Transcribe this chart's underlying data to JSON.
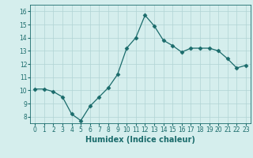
{
  "x": [
    0,
    1,
    2,
    3,
    4,
    5,
    6,
    7,
    8,
    9,
    10,
    11,
    12,
    13,
    14,
    15,
    16,
    17,
    18,
    19,
    20,
    21,
    22,
    23
  ],
  "y": [
    10.1,
    10.1,
    9.9,
    9.5,
    8.2,
    7.7,
    8.8,
    9.5,
    10.2,
    11.2,
    13.2,
    14.0,
    15.7,
    14.9,
    13.8,
    13.4,
    12.9,
    13.2,
    13.2,
    13.2,
    13.0,
    12.4,
    11.7,
    11.9
  ],
  "xlabel": "Humidex (Indice chaleur)",
  "xlim": [
    -0.5,
    23.5
  ],
  "ylim": [
    7.5,
    16.5
  ],
  "yticks": [
    8,
    9,
    10,
    11,
    12,
    13,
    14,
    15,
    16
  ],
  "xticks": [
    0,
    1,
    2,
    3,
    4,
    5,
    6,
    7,
    8,
    9,
    10,
    11,
    12,
    13,
    14,
    15,
    16,
    17,
    18,
    19,
    20,
    21,
    22,
    23
  ],
  "line_color": "#1a6b6b",
  "marker_color": "#1a6b6b",
  "bg_color": "#d5eeed",
  "grid_color": "#b0d4d4",
  "label_color": "#1a6b6b",
  "tick_color": "#1a6b6b",
  "tick_fontsize": 5.5,
  "xlabel_fontsize": 7
}
